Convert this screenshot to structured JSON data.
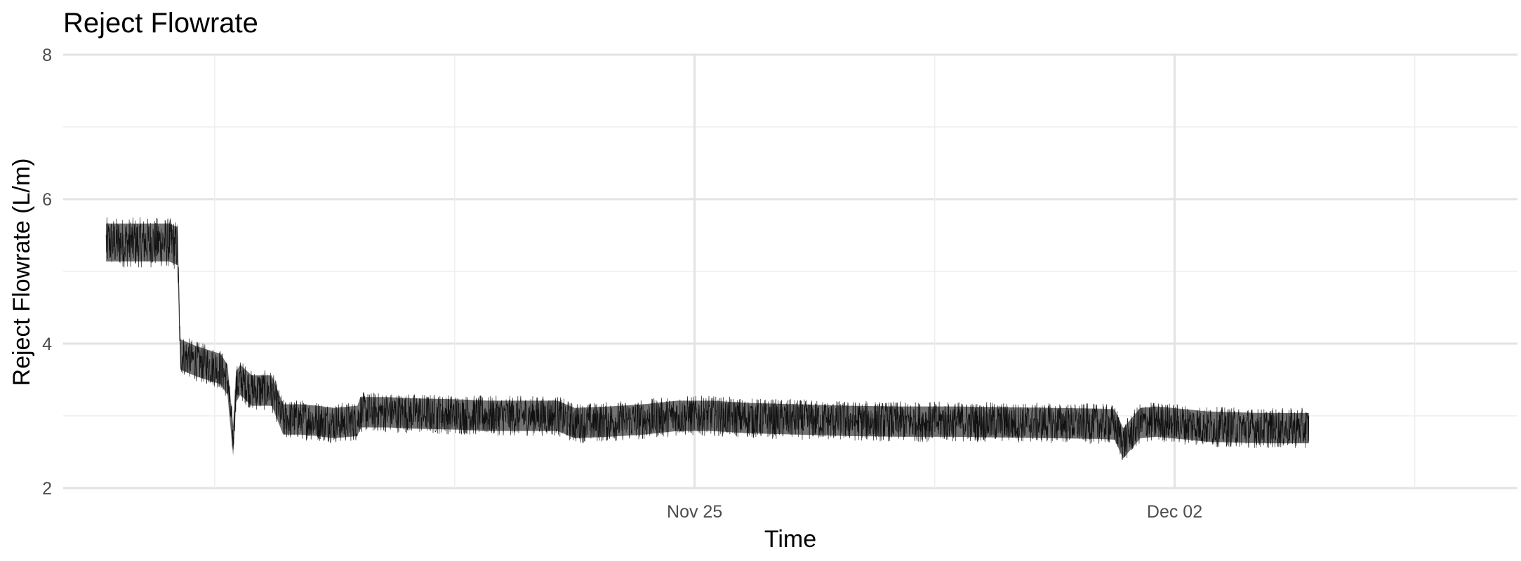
{
  "chart_data": {
    "type": "line",
    "title": "Reject Flowrate",
    "xlabel": "Time",
    "ylabel": "Reject Flowrate (L/m)",
    "xlim": [
      "2024-11-15T19:00",
      "2024-12-07T00:00"
    ],
    "ylim": [
      2,
      8
    ],
    "x_ticks": [
      "Nov 25",
      "Dec 02"
    ],
    "y_ticks": [
      "2",
      "4",
      "6",
      "8"
    ],
    "grid": true,
    "legend": "none",
    "line_color": "#000000",
    "series": [
      {
        "noise_band": 0.28,
        "x": [
          "2024-11-16T10:00",
          "2024-11-16T16:00",
          "2024-11-17T00:00",
          "2024-11-17T08:00",
          "2024-11-17T11:00",
          "2024-11-17T12:00",
          "2024-11-17T18:00",
          "2024-11-18T02:00",
          "2024-11-18T04:30",
          "2024-11-18T06:30",
          "2024-11-18T07:30",
          "2024-11-18T09:00",
          "2024-11-18T13:00",
          "2024-11-18T20:00",
          "2024-11-19T00:00",
          "2024-11-19T06:00",
          "2024-11-19T12:00",
          "2024-11-19T18:00",
          "2024-11-20T02:00",
          "2024-11-20T03:00",
          "2024-11-20T12:00",
          "2024-11-21T00:00",
          "2024-11-21T12:00",
          "2024-11-22T00:00",
          "2024-11-22T12:00",
          "2024-11-23T00:00",
          "2024-11-23T06:00",
          "2024-11-23T18:00",
          "2024-11-24T06:00",
          "2024-11-24T18:00",
          "2024-11-25T06:00",
          "2024-11-25T18:00",
          "2024-11-26T12:00",
          "2024-11-27T06:00",
          "2024-11-28T00:00",
          "2024-11-28T18:00",
          "2024-11-29T12:00",
          "2024-11-30T06:00",
          "2024-11-30T22:00",
          "2024-12-01T03:00",
          "2024-12-01T06:00",
          "2024-12-01T12:00",
          "2024-12-01T18:00",
          "2024-12-02T12:00",
          "2024-12-03T06:00",
          "2024-12-03T23:00"
        ],
        "y": [
          5.4,
          5.4,
          5.4,
          5.4,
          5.35,
          3.85,
          3.75,
          3.65,
          3.5,
          2.65,
          3.4,
          3.5,
          3.35,
          3.35,
          2.95,
          2.95,
          2.93,
          2.9,
          2.93,
          3.05,
          3.05,
          3.03,
          3.02,
          3.0,
          3.0,
          3.0,
          2.9,
          2.92,
          2.95,
          3.0,
          3.0,
          2.97,
          2.95,
          2.93,
          2.92,
          2.92,
          2.91,
          2.9,
          2.89,
          2.88,
          2.62,
          2.9,
          2.92,
          2.85,
          2.83,
          2.83
        ]
      }
    ]
  }
}
